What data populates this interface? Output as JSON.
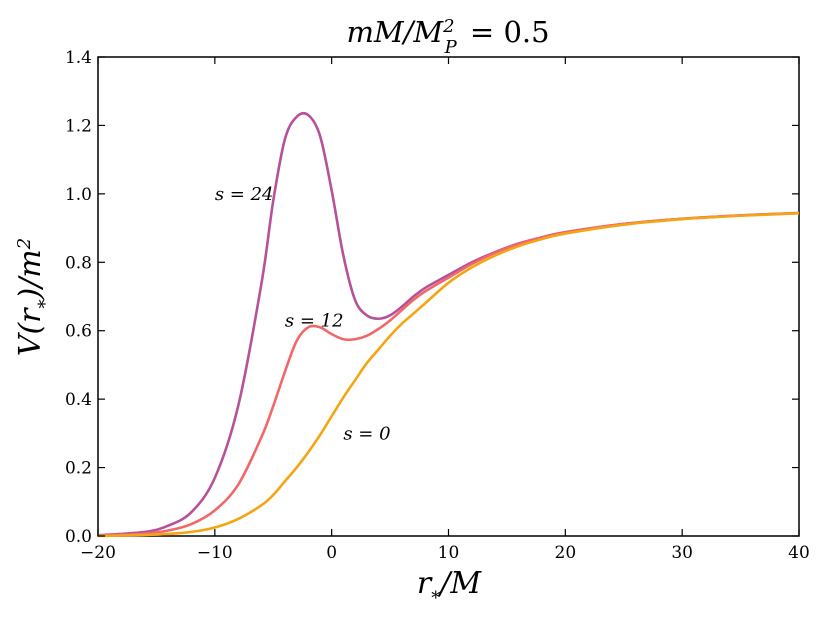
{
  "chart_data": {
    "type": "line",
    "title": "mM/M_P^2 = 0.5",
    "xlabel": "r_*/M",
    "ylabel": "V(r_*)/m^2",
    "xlim": [
      -20,
      40
    ],
    "ylim": [
      0,
      1.4
    ],
    "xticks": [
      -20,
      -10,
      0,
      10,
      20,
      30,
      40
    ],
    "yticks": [
      0.0,
      0.2,
      0.4,
      0.6,
      0.8,
      1.0,
      1.2,
      1.4
    ],
    "xtick_labels": [
      "−20",
      "−10",
      "0",
      "10",
      "20",
      "30",
      "40"
    ],
    "ytick_labels": [
      "0.0",
      "0.2",
      "0.4",
      "0.6",
      "0.8",
      "1.0",
      "1.2",
      "1.4"
    ],
    "grid": false,
    "series": [
      {
        "name": "s = 24",
        "color": "#b5529a",
        "x": [
          -20,
          -16,
          -14,
          -12,
          -10,
          -8,
          -6,
          -5,
          -4,
          -3,
          -2,
          -1,
          0,
          1,
          2,
          3,
          4,
          5,
          6,
          7,
          8,
          10,
          12,
          14,
          16,
          18,
          20,
          25,
          30,
          35,
          40
        ],
        "y": [
          0.002,
          0.012,
          0.03,
          0.07,
          0.17,
          0.38,
          0.74,
          0.98,
          1.16,
          1.225,
          1.23,
          1.17,
          1.01,
          0.82,
          0.69,
          0.645,
          0.635,
          0.645,
          0.67,
          0.7,
          0.725,
          0.763,
          0.8,
          0.83,
          0.855,
          0.873,
          0.888,
          0.912,
          0.927,
          0.937,
          0.944
        ]
      },
      {
        "name": "s = 12",
        "color": "#f06869",
        "x": [
          -20,
          -16,
          -14,
          -12,
          -10,
          -8,
          -6,
          -5,
          -4,
          -3,
          -2,
          -1,
          0,
          1,
          2,
          3,
          4,
          5,
          6,
          7,
          8,
          10,
          12,
          14,
          16,
          18,
          20,
          25,
          30,
          35,
          40
        ],
        "y": [
          0.001,
          0.007,
          0.016,
          0.035,
          0.075,
          0.15,
          0.29,
          0.38,
          0.48,
          0.57,
          0.61,
          0.61,
          0.59,
          0.575,
          0.575,
          0.585,
          0.605,
          0.63,
          0.66,
          0.69,
          0.715,
          0.755,
          0.795,
          0.828,
          0.853,
          0.872,
          0.887,
          0.912,
          0.927,
          0.937,
          0.944
        ]
      },
      {
        "name": "s = 0",
        "color": "#f5a514",
        "x": [
          -20,
          -16,
          -14,
          -12,
          -10,
          -8,
          -6,
          -5,
          -4,
          -3,
          -2,
          -1,
          0,
          1,
          2,
          3,
          4,
          5,
          6,
          7,
          8,
          10,
          12,
          14,
          16,
          18,
          20,
          25,
          30,
          35,
          40
        ],
        "y": [
          0.0,
          0.003,
          0.006,
          0.012,
          0.025,
          0.05,
          0.09,
          0.12,
          0.16,
          0.2,
          0.245,
          0.295,
          0.35,
          0.405,
          0.455,
          0.505,
          0.545,
          0.585,
          0.62,
          0.65,
          0.68,
          0.74,
          0.785,
          0.82,
          0.847,
          0.868,
          0.884,
          0.91,
          0.926,
          0.936,
          0.943
        ]
      }
    ],
    "annotations": [
      {
        "text": "s = 24",
        "x": -10,
        "y": 1.0
      },
      {
        "text": "s = 12",
        "x": -4,
        "y": 0.63
      },
      {
        "text": "s = 0",
        "x": 1,
        "y": 0.3
      }
    ]
  }
}
